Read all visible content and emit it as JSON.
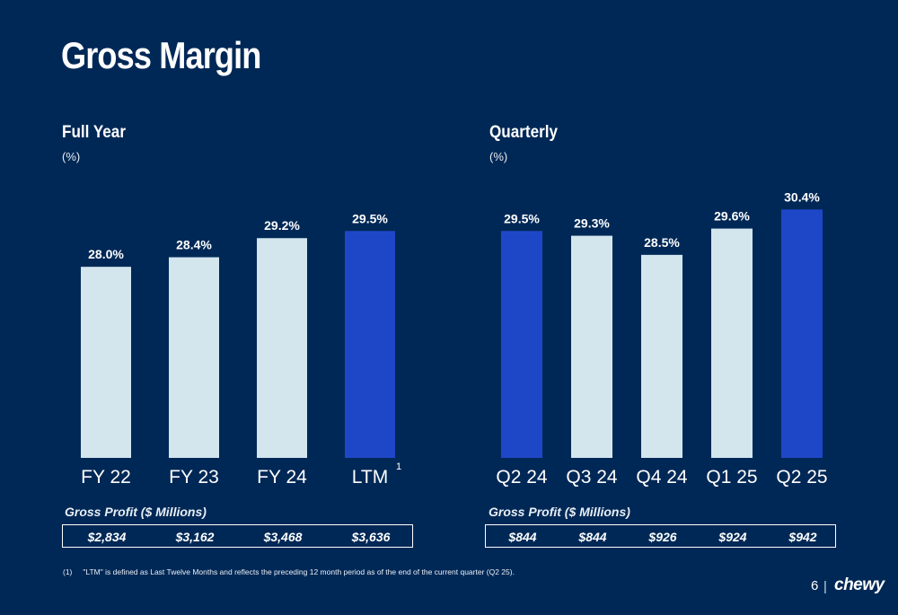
{
  "page": {
    "title": "Gross Margin",
    "page_number": "6",
    "separator": "|",
    "logo_text": "chewy",
    "footnote": {
      "marker": "(1)",
      "text": "\"LTM\" is defined as Last Twelve Months and reflects the preceding 12 month period as of the end of the current quarter (Q2 25)."
    }
  },
  "colors": {
    "background": "#002856",
    "bar_light": "#d3e6ee",
    "bar_highlight": "#1e47c8",
    "text": "#ffffff"
  },
  "chart_data": [
    {
      "type": "bar",
      "title": "Full Year",
      "subtitle": "(%)",
      "categories": [
        "FY 22",
        "FY 23",
        "FY 24",
        "LTM"
      ],
      "category_superscripts": [
        "",
        "",
        "",
        "1"
      ],
      "values": [
        28.0,
        28.4,
        29.2,
        29.5
      ],
      "data_labels": [
        "28.0%",
        "28.4%",
        "29.2%",
        "29.5%"
      ],
      "highlight": [
        false,
        false,
        false,
        true
      ],
      "ylim": [
        20.0,
        30.6
      ],
      "grid": false,
      "table": {
        "label": "Gross Profit ($ Millions)",
        "values": [
          "$2,834",
          "$3,162",
          "$3,468",
          "$3,636"
        ]
      }
    },
    {
      "type": "bar",
      "title": "Quarterly",
      "subtitle": "(%)",
      "categories": [
        "Q2 24",
        "Q3 24",
        "Q4 24",
        "Q1 25",
        "Q2 25"
      ],
      "category_superscripts": [
        "",
        "",
        "",
        "",
        ""
      ],
      "values": [
        29.5,
        29.3,
        28.5,
        29.6,
        30.4
      ],
      "data_labels": [
        "29.5%",
        "29.3%",
        "28.5%",
        "29.6%",
        "30.4%"
      ],
      "highlight": [
        true,
        false,
        false,
        false,
        true
      ],
      "ylim": [
        20.0,
        30.6
      ],
      "grid": false,
      "table": {
        "label": "Gross Profit ($ Millions)",
        "values": [
          "$844",
          "$844",
          "$926",
          "$924",
          "$942"
        ]
      }
    }
  ]
}
